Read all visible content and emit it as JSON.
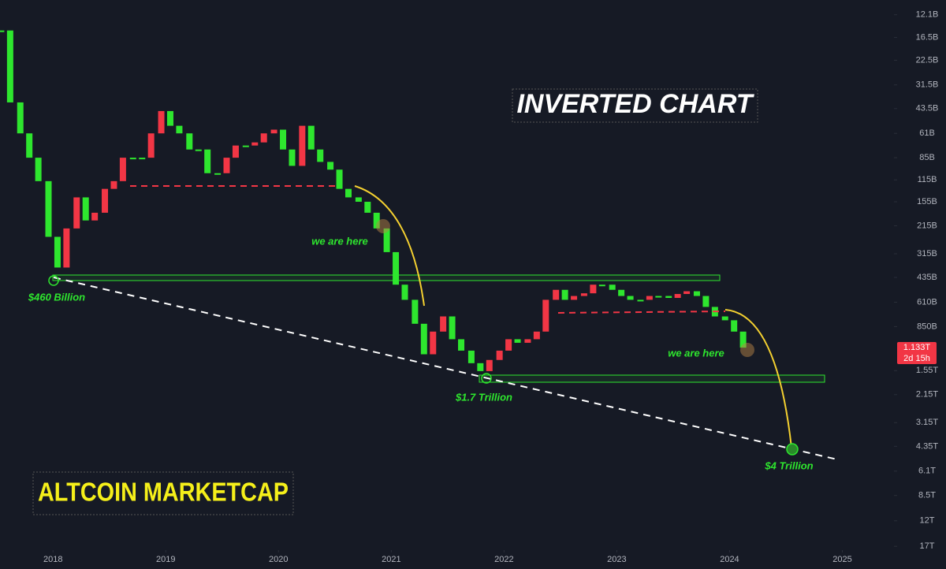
{
  "chart_data": {
    "type": "candlestick",
    "title": "ALTCOIN MARKETCAP",
    "subtitle": "INVERTED CHART",
    "annotations": [
      "we are here",
      "we are here",
      "$460 Billion",
      "$1.7 Trillion",
      "$4 Trillion"
    ],
    "price_tag": "1.133T",
    "countdown": "2d 15h",
    "log_scale": true,
    "y_inverted": true,
    "grid": false,
    "up_color": "#2ee62e",
    "down_color": "#f23645",
    "x": [
      2017.54,
      2017.62,
      2017.71,
      2017.79,
      2017.87,
      2017.96,
      2018.04,
      2018.12,
      2018.21,
      2018.29,
      2018.37,
      2018.46,
      2018.54,
      2018.62,
      2018.71,
      2018.79,
      2018.87,
      2018.96,
      2019.04,
      2019.12,
      2019.21,
      2019.29,
      2019.37,
      2019.46,
      2019.54,
      2019.62,
      2019.71,
      2019.79,
      2019.87,
      2019.96,
      2020.04,
      2020.12,
      2020.21,
      2020.29,
      2020.37,
      2020.46,
      2020.54,
      2020.62,
      2020.71,
      2020.79,
      2020.87,
      2020.96,
      2021.04,
      2021.12,
      2021.21,
      2021.29,
      2021.37,
      2021.46,
      2021.54,
      2021.62,
      2021.71,
      2021.79,
      2021.87,
      2021.96,
      2022.04,
      2022.12,
      2022.21,
      2022.29,
      2022.37,
      2022.46,
      2022.54,
      2022.62,
      2022.71,
      2022.79,
      2022.87,
      2022.96,
      2023.04,
      2023.12,
      2023.21,
      2023.29,
      2023.37,
      2023.46,
      2023.54,
      2023.62,
      2023.71,
      2023.79,
      2023.87,
      2023.96,
      2024.04,
      2024.12
    ],
    "values": [
      15,
      40,
      61,
      85,
      117,
      250,
      380,
      223,
      146,
      200,
      180,
      130,
      117,
      85,
      85,
      85,
      61,
      45,
      55,
      61,
      76,
      76,
      105,
      105,
      85,
      72,
      72,
      69,
      61,
      58,
      76,
      95,
      55,
      76,
      90,
      100,
      130,
      146,
      155,
      180,
      223,
      308,
      480,
      590,
      818,
      1240,
      910,
      740,
      1010,
      1180,
      1400,
      1560,
      1340,
      1180,
      1010,
      1060,
      1010,
      910,
      590,
      515,
      590,
      560,
      540,
      480,
      480,
      515,
      560,
      590,
      590,
      560,
      560,
      575,
      545,
      525,
      560,
      650,
      740,
      780,
      910,
      1133
    ],
    "xlim": [
      2017.53,
      2025.43
    ],
    "xticks": [
      2018,
      2019,
      2020,
      2021,
      2022,
      2023,
      2024,
      2025
    ],
    "ylim": [
      9.9,
      17900
    ],
    "yticks": [
      {
        "value": 12.1,
        "label": "12.1B"
      },
      {
        "value": 16.5,
        "label": "16.5B"
      },
      {
        "value": 22.5,
        "label": "22.5B"
      },
      {
        "value": 31.5,
        "label": "31.5B"
      },
      {
        "value": 43.5,
        "label": "43.5B"
      },
      {
        "value": 61,
        "label": "61B"
      },
      {
        "value": 85,
        "label": "85B"
      },
      {
        "value": 115,
        "label": "115B"
      },
      {
        "value": 155,
        "label": "155B"
      },
      {
        "value": 215,
        "label": "215B"
      },
      {
        "value": 315,
        "label": "315B"
      },
      {
        "value": 435,
        "label": "435B"
      },
      {
        "value": 610,
        "label": "610B"
      },
      {
        "value": 850,
        "label": "850B"
      },
      {
        "value": 1550,
        "label": "1.55T"
      },
      {
        "value": 2150,
        "label": "2.15T"
      },
      {
        "value": 3150,
        "label": "3.15T"
      },
      {
        "value": 4350,
        "label": "4.35T"
      },
      {
        "value": 6100,
        "label": "6.1T"
      },
      {
        "value": 8500,
        "label": "8.5T"
      },
      {
        "value": 12000,
        "label": "12T"
      },
      {
        "value": 17000,
        "label": "17T"
      }
    ]
  }
}
